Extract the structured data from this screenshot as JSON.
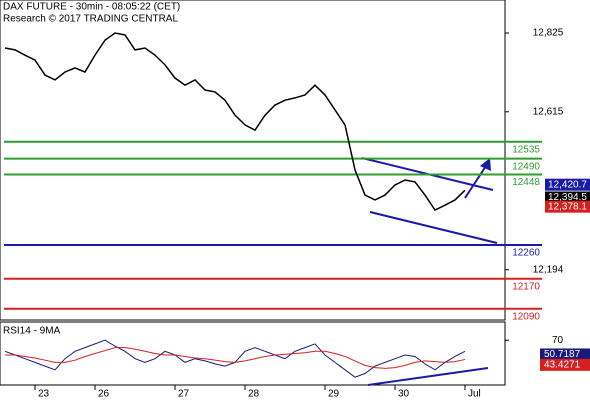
{
  "chart_data": {
    "type": "line",
    "title": "DAX FUTURE - 30min - 08:05:22 (CET)",
    "subtitle": "Research © 2017 TRADING CENTRAL",
    "categories": [
      null,
      null,
      null,
      "23",
      null,
      null,
      null,
      null,
      null,
      "26",
      null,
      null,
      null,
      null,
      null,
      null,
      null,
      "27",
      null,
      null,
      null,
      null,
      null,
      null,
      "28",
      null,
      null,
      null,
      null,
      null,
      null,
      null,
      "29",
      null,
      null,
      null,
      null,
      null,
      null,
      "30",
      null,
      null,
      null,
      null,
      null,
      null,
      "Jul"
    ],
    "series": [
      {
        "name": "DAX FUTURE",
        "color": "#000000",
        "values": [
          12785,
          12780,
          12766,
          12753,
          12713,
          12700,
          12721,
          12732,
          12721,
          12766,
          12806,
          12825,
          12820,
          12780,
          12785,
          12766,
          12740,
          12705,
          12686,
          12700,
          12673,
          12668,
          12646,
          12606,
          12580,
          12566,
          12606,
          12633,
          12646,
          12652,
          12660,
          12686,
          12660,
          12620,
          12580,
          12460,
          12393,
          12380,
          12393,
          12420,
          12433,
          12428,
          12393,
          12353,
          12366,
          12380,
          12406
        ]
      }
    ],
    "ylim": [
      12060,
      12913
    ],
    "yticks": [
      {
        "value": 12825,
        "label": "12,825"
      },
      {
        "value": 12615,
        "label": "12,615"
      },
      {
        "value": 12194,
        "label": "12,194"
      }
    ],
    "levels": [
      {
        "value": 12535,
        "color": "#2e9e2e"
      },
      {
        "value": 12490,
        "color": "#2e9e2e"
      },
      {
        "value": 12448,
        "color": "#2e9e2e"
      },
      {
        "value": 12260,
        "color": "#1a1aa8"
      },
      {
        "value": 12170,
        "color": "#d42020"
      },
      {
        "value": 12090,
        "color": "#d42020"
      }
    ],
    "price_labels": [
      {
        "value": 12420.7,
        "label": "12,420.7",
        "color": "#1a1aa8"
      },
      {
        "value": 12394.5,
        "label": "12,394.5",
        "color": "#000000"
      },
      {
        "value": 12378.1,
        "label": "12,378.1",
        "color": "#d42020"
      }
    ],
    "indicator": {
      "title": "RSI14 - 9MA",
      "ylim": [
        0,
        100
      ],
      "yticks": [
        70
      ],
      "series": [
        {
          "color": "#1a1a7a",
          "values": [
            55,
            50,
            45,
            40,
            35,
            30,
            45,
            55,
            60,
            65,
            70,
            62,
            55,
            45,
            40,
            45,
            55,
            50,
            40,
            45,
            42,
            38,
            35,
            40,
            55,
            60,
            55,
            50,
            45,
            55,
            60,
            65,
            50,
            40,
            30,
            20,
            25,
            35,
            40,
            45,
            50,
            48,
            38,
            30,
            40,
            48,
            55
          ]
        },
        {
          "color": "#d42020",
          "values": [
            50,
            50,
            48,
            46,
            43,
            40,
            40,
            43,
            48,
            52,
            56,
            60,
            60,
            58,
            55,
            52,
            50,
            50,
            48,
            46,
            45,
            43,
            41,
            40,
            42,
            45,
            48,
            50,
            51,
            52,
            53,
            55,
            55,
            52,
            48,
            42,
            36,
            33,
            32,
            33,
            36,
            40,
            42,
            41,
            40,
            41,
            44
          ]
        }
      ],
      "value_labels": [
        {
          "value": 50.7187,
          "label": "50.7187",
          "color": "#1a1a7a"
        },
        {
          "value": 43.4271,
          "label": "43.4271",
          "color": "#d42020"
        }
      ]
    }
  }
}
